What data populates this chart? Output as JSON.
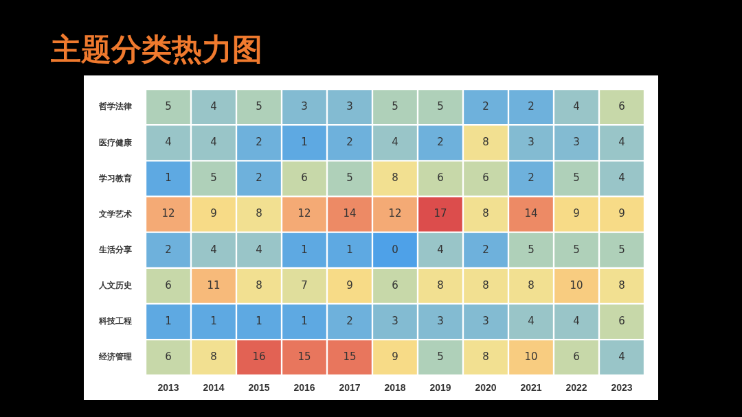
{
  "chart_data": {
    "type": "heatmap",
    "title": "主题分类热力图",
    "categories": [
      "2013",
      "2014",
      "2015",
      "2016",
      "2017",
      "2018",
      "2019",
      "2020",
      "2021",
      "2022",
      "2023"
    ],
    "y_categories": [
      "哲学法律",
      "医疗健康",
      "学习教育",
      "文学艺术",
      "生活分享",
      "人文历史",
      "科技工程",
      "经济管理"
    ],
    "cells": [
      [
        5,
        4,
        5,
        3,
        3,
        5,
        5,
        2,
        2,
        4,
        6
      ],
      [
        4,
        4,
        2,
        1,
        2,
        4,
        2,
        8,
        3,
        3,
        4
      ],
      [
        1,
        5,
        2,
        6,
        5,
        8,
        6,
        6,
        2,
        5,
        4
      ],
      [
        12,
        9,
        8,
        12,
        14,
        12,
        17,
        8,
        14,
        9,
        9
      ],
      [
        2,
        4,
        4,
        1,
        1,
        0,
        4,
        2,
        5,
        5,
        5
      ],
      [
        6,
        11,
        8,
        7,
        9,
        6,
        8,
        8,
        8,
        10,
        8
      ],
      [
        1,
        1,
        1,
        1,
        2,
        3,
        3,
        3,
        4,
        4,
        6
      ],
      [
        6,
        8,
        16,
        15,
        15,
        9,
        5,
        8,
        10,
        6,
        4
      ]
    ],
    "data_labels": true
  }
}
